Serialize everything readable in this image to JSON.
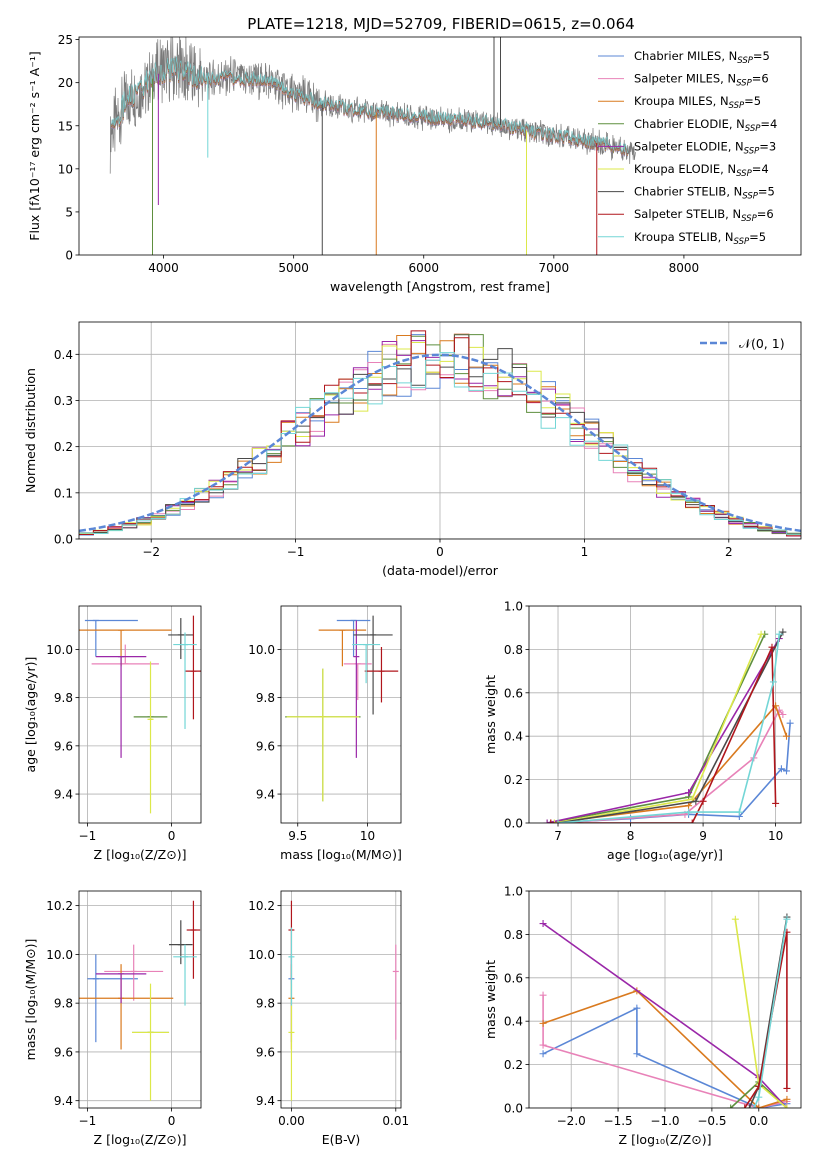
{
  "figure_title": "PLATE=1218, MJD=52709, FIBERID=0615, z=0.064",
  "colors": [
    "#5b87d6",
    "#e882b8",
    "#d97a1f",
    "#5e8f3e",
    "#9a27a8",
    "#dce84a",
    "#4a4a4a",
    "#b0161c",
    "#73d6d6"
  ],
  "chart_data": [
    {
      "id": "spectrum",
      "type": "line",
      "xlabel": "wavelength [Angstrom, rest frame]",
      "ylabel": "Flux [fλ10⁻¹⁷ erg cm⁻² s⁻¹ A⁻¹]",
      "xlim": [
        3350,
        8900
      ],
      "ylim": [
        0,
        25.3
      ],
      "xticks": [
        4000,
        5000,
        6000,
        7000,
        8000
      ],
      "yticks": [
        0,
        5,
        10,
        15,
        20,
        25
      ],
      "grid": false,
      "legend": "top-right",
      "series": [
        {
          "name": "Chabrier MILES, N_SSP=5"
        },
        {
          "name": "Salpeter MILES, N_SSP=6"
        },
        {
          "name": "Kroupa MILES, N_SSP=5"
        },
        {
          "name": "Chabrier ELODIE, N_SSP=4"
        },
        {
          "name": "Salpeter ELODIE, N_SSP=3"
        },
        {
          "name": "Kroupa ELODIE, N_SSP=4"
        },
        {
          "name": "Chabrier STELIB, N_SSP=5"
        },
        {
          "name": "Salpeter STELIB, N_SSP=6"
        },
        {
          "name": "Kroupa STELIB, N_SSP=5"
        }
      ],
      "continuum": {
        "x": [
          3600,
          3700,
          3850,
          3950,
          4100,
          4300,
          4500,
          4800,
          5000,
          5300,
          5600,
          6000,
          6500,
          6800,
          7100,
          7400,
          7600
        ],
        "y": [
          14,
          17.5,
          19.5,
          21,
          21.5,
          20.5,
          20.5,
          20.3,
          18.6,
          17.2,
          16.6,
          16,
          15.4,
          14.4,
          13.6,
          12.8,
          12
        ]
      },
      "data_x_range": [
        3590,
        7630
      ],
      "model_x_range": [
        3600,
        7570
      ],
      "spikes": [
        {
          "x": 3915,
          "y": 0,
          "series": 3
        },
        {
          "x": 3960,
          "y": 5.8,
          "series": 4
        },
        {
          "x": 4340,
          "y": 11.3,
          "series": 8
        },
        {
          "x": 5220,
          "y": 0,
          "series": 6
        },
        {
          "x": 5635,
          "y": 0,
          "series": 2
        },
        {
          "x": 6790,
          "y": 0,
          "series": 5
        },
        {
          "x": 7330,
          "y": 0,
          "series": 7
        },
        {
          "x": 6540,
          "y": 25.3,
          "series": 6
        },
        {
          "x": 6590,
          "y": 25.3,
          "series": 6
        }
      ]
    },
    {
      "id": "residuals",
      "type": "line",
      "xlabel": "(data-model)/error",
      "ylabel": "Normed distribution",
      "xlim": [
        -2.5,
        2.5
      ],
      "ylim": [
        0,
        0.47
      ],
      "xticks": [
        -2,
        -1,
        0,
        1,
        2
      ],
      "yticks": [
        0.0,
        0.1,
        0.2,
        0.3,
        0.4
      ],
      "grid": true,
      "legend": "top-right",
      "legend_label": "𝒩(0, 1)",
      "bin_width": 0.1,
      "series_note": "step histograms, one per model fit, approximately normal"
    },
    {
      "id": "age_vs_Z",
      "type": "scatter",
      "xlabel": "Z [log₁₀(Z/Z⊙)]",
      "ylabel": "age  [log₁₀(age/yr)]",
      "xlim": [
        -1.1,
        0.35
      ],
      "ylim": [
        9.28,
        10.18
      ],
      "xticks": [
        -1,
        0
      ],
      "yticks": [
        9.4,
        9.6,
        9.8,
        10.0
      ],
      "grid": true,
      "points": [
        {
          "x": -0.9,
          "xerr": 0.13,
          "xerr2": 0.5,
          "y": 10.12,
          "yerr_lo": 0.15,
          "yerr_hi": 0.0,
          "series": 0
        },
        {
          "x": -0.55,
          "xerr": 0.4,
          "y": 9.94,
          "yerr_lo": 0.0,
          "yerr_hi": 0.08,
          "series": 1
        },
        {
          "x": -0.6,
          "xerr": 0.6,
          "y": 10.08,
          "yerr_lo": 0.15,
          "yerr_hi": 0.0,
          "series": 2
        },
        {
          "x": -0.25,
          "xerr": 0.2,
          "y": 9.72,
          "yerr_lo": 0.0,
          "yerr_hi": 0.0,
          "series": 3
        },
        {
          "x": -0.6,
          "xerr": 0.3,
          "y": 9.97,
          "yerr_lo": 0.42,
          "yerr_hi": 0.0,
          "series": 4
        },
        {
          "x": -0.25,
          "xerr": 0.02,
          "y": 9.71,
          "yerr_lo": 0.39,
          "yerr_hi": 0.24,
          "series": 5
        },
        {
          "x": 0.11,
          "xerr": 0.15,
          "y": 10.06,
          "yerr_lo": 0.1,
          "yerr_hi": 0.07,
          "series": 6
        },
        {
          "x": 0.26,
          "xerr": 0.1,
          "y": 9.91,
          "yerr_lo": 0.2,
          "yerr_hi": 0.23,
          "series": 7
        },
        {
          "x": 0.16,
          "xerr": 0.14,
          "y": 10.02,
          "yerr_lo": 0.35,
          "yerr_hi": 0.05,
          "series": 8
        }
      ]
    },
    {
      "id": "age_vs_mass",
      "type": "scatter",
      "xlabel": "mass [log₁₀(M/M⊙)]",
      "ylabel": "",
      "xlim": [
        9.38,
        10.24
      ],
      "ylim": [
        9.28,
        10.18
      ],
      "xticks": [
        9.5,
        10.0
      ],
      "yticks": [
        9.4,
        9.6,
        9.8,
        10.0
      ],
      "grid": true,
      "points": [
        {
          "x": 9.9,
          "xerr": 0.12,
          "y": 10.12,
          "yerr_lo": 0.15,
          "yerr_hi": 0.0,
          "series": 0
        },
        {
          "x": 9.93,
          "xerr": 0.1,
          "y": 9.94,
          "yerr_lo": 0.15,
          "yerr_hi": 0.0,
          "series": 1
        },
        {
          "x": 9.82,
          "xerr": 0.17,
          "y": 10.08,
          "yerr_lo": 0.15,
          "yerr_hi": 0.0,
          "series": 2
        },
        {
          "x": 9.68,
          "xerr": 0.27,
          "y": 9.72,
          "yerr_lo": 0.35,
          "yerr_hi": 0.2,
          "series": 3
        },
        {
          "x": 9.92,
          "xerr": 0.0,
          "y": 9.97,
          "yerr_lo": 0.42,
          "yerr_hi": 0.15,
          "series": 4
        },
        {
          "x": 9.68,
          "xerr": 0.26,
          "y": 9.72,
          "yerr_lo": 0.35,
          "yerr_hi": 0.2,
          "series": 5
        },
        {
          "x": 10.04,
          "xerr": 0.14,
          "y": 10.06,
          "yerr_lo": 0.33,
          "yerr_hi": 0.08,
          "series": 6
        },
        {
          "x": 10.1,
          "xerr": 0.12,
          "y": 9.91,
          "yerr_lo": 0.13,
          "yerr_hi": 0.1,
          "series": 7
        },
        {
          "x": 9.99,
          "xerr": 0.1,
          "y": 10.02,
          "yerr_lo": 0.16,
          "yerr_hi": 0.0,
          "series": 8
        }
      ]
    },
    {
      "id": "massweight_vs_age",
      "type": "line",
      "xlabel": "age  [log₁₀(age/yr)]",
      "ylabel": "mass weight",
      "xlim": [
        6.6,
        10.35
      ],
      "ylim": [
        0,
        1.0
      ],
      "xticks": [
        7,
        8,
        9,
        10
      ],
      "yticks": [
        0.0,
        0.2,
        0.4,
        0.6,
        0.8,
        1.0
      ],
      "grid": true,
      "series": [
        {
          "x": [
            7.0,
            8.0,
            9.15,
            9.5,
            10.1,
            10.12,
            10.2
          ],
          "y": [
            0.0,
            0.02,
            0.04,
            0.03,
            0.25,
            0.25,
            0.46
          ],
          "order": [
            0,
            1,
            2,
            3,
            5,
            6,
            4,
            4
          ],
          "path": [
            [
              6.9,
              0.0
            ],
            [
              8.0,
              0.02
            ],
            [
              8.8,
              0.04
            ],
            [
              9.5,
              0.03
            ],
            [
              10.08,
              0.25
            ],
            [
              10.15,
              0.24
            ],
            [
              10.2,
              0.46
            ]
          ]
        },
        {
          "path": [
            [
              7.0,
              0.0
            ],
            [
              8.75,
              0.04
            ],
            [
              9.7,
              0.3
            ],
            [
              10.05,
              0.52
            ],
            [
              10.1,
              0.5
            ]
          ]
        },
        {
          "path": [
            [
              6.9,
              0.0
            ],
            [
              8.8,
              0.08
            ],
            [
              10.0,
              0.54
            ],
            [
              10.15,
              0.4
            ]
          ]
        },
        {
          "path": [
            [
              6.85,
              0.0
            ],
            [
              8.8,
              0.12
            ],
            [
              9.85,
              0.87
            ]
          ]
        },
        {
          "path": [
            [
              6.85,
              0.0
            ],
            [
              8.8,
              0.14
            ],
            [
              10.05,
              0.85
            ]
          ]
        },
        {
          "path": [
            [
              6.95,
              0.0
            ],
            [
              8.85,
              0.11
            ],
            [
              9.8,
              0.87
            ]
          ]
        },
        {
          "path": [
            [
              7.0,
              0.0
            ],
            [
              8.9,
              0.1
            ],
            [
              10.1,
              0.88
            ]
          ]
        },
        {
          "path": [
            [
              6.9,
              0.0
            ],
            [
              8.85,
              0.0
            ],
            [
              9.0,
              0.1
            ],
            [
              9.95,
              0.81
            ],
            [
              10.0,
              0.09
            ]
          ]
        },
        {
          "path": [
            [
              7.0,
              0.0
            ],
            [
              8.8,
              0.05
            ],
            [
              9.5,
              0.05
            ],
            [
              9.97,
              0.65
            ],
            [
              10.05,
              0.87
            ]
          ]
        }
      ]
    },
    {
      "id": "mass_vs_Z",
      "type": "scatter",
      "xlabel": "Z [log₁₀(Z/Z⊙)]",
      "ylabel": "mass [log₁₀(M/M⊙)]",
      "xlim": [
        -1.1,
        0.35
      ],
      "ylim": [
        9.37,
        10.26
      ],
      "xticks": [
        -1,
        0
      ],
      "yticks": [
        9.4,
        9.6,
        9.8,
        10.0,
        10.2
      ],
      "grid": true,
      "points": [
        {
          "x": -0.9,
          "xerr": 0.1,
          "xerr2": 0.5,
          "y": 9.9,
          "yerr_lo": 0.26,
          "yerr_hi": 0.1,
          "series": 0
        },
        {
          "x": -0.45,
          "xerr": 0.35,
          "y": 9.93,
          "yerr_lo": 0.12,
          "yerr_hi": 0.11,
          "series": 1
        },
        {
          "x": -0.6,
          "xerr": 0.62,
          "y": 9.82,
          "yerr_lo": 0.21,
          "yerr_hi": 0.14,
          "series": 2
        },
        {
          "x": -0.25,
          "xerr": 0.22,
          "y": 9.68,
          "yerr_lo": 0.0,
          "yerr_hi": 0.0,
          "series": 3
        },
        {
          "x": -0.6,
          "xerr": 0.3,
          "y": 9.92,
          "yerr_lo": 0.12,
          "yerr_hi": 0.0,
          "series": 4
        },
        {
          "x": -0.25,
          "xerr": 0.22,
          "y": 9.68,
          "yerr_lo": 0.28,
          "yerr_hi": 0.2,
          "series": 5
        },
        {
          "x": 0.11,
          "xerr": 0.14,
          "y": 10.04,
          "yerr_lo": 0.08,
          "yerr_hi": 0.1,
          "series": 6
        },
        {
          "x": 0.26,
          "xerr": 0.08,
          "y": 10.1,
          "yerr_lo": 0.2,
          "yerr_hi": 0.12,
          "series": 7
        },
        {
          "x": 0.16,
          "xerr": 0.14,
          "y": 9.99,
          "yerr_lo": 0.2,
          "yerr_hi": 0.05,
          "series": 8
        }
      ]
    },
    {
      "id": "mass_vs_ebv",
      "type": "scatter",
      "xlabel": "E(B-V)",
      "ylabel": "",
      "xlim": [
        -0.001,
        0.0105
      ],
      "ylim": [
        9.37,
        10.26
      ],
      "xticks": [
        0.0,
        0.01
      ],
      "xticklabels": [
        "0.00",
        "0.01"
      ],
      "yticks": [
        9.4,
        9.6,
        9.8,
        10.0,
        10.2
      ],
      "grid": true,
      "points": [
        {
          "x": 0.0,
          "y": 9.9,
          "yerr_lo": 0.26,
          "yerr_hi": 0.1,
          "series": 0
        },
        {
          "x": 0.01,
          "y": 9.93,
          "yerr_lo": 0.28,
          "yerr_hi": 0.11,
          "series": 1
        },
        {
          "x": 0.0,
          "y": 9.82,
          "yerr_lo": 0.21,
          "yerr_hi": 0.14,
          "series": 2
        },
        {
          "x": 0.0,
          "y": 9.68,
          "yerr_lo": 0.28,
          "yerr_hi": 0.2,
          "series": 5
        },
        {
          "x": 0.0,
          "y": 10.1,
          "yerr_lo": 0.2,
          "yerr_hi": 0.12,
          "series": 7
        },
        {
          "x": 0.0,
          "y": 9.99,
          "yerr_lo": 0.2,
          "yerr_hi": 0.12,
          "series": 8
        }
      ]
    },
    {
      "id": "massweight_vs_Z",
      "type": "line",
      "xlabel": "Z [log₁₀(Z/Z⊙)]",
      "ylabel": "mass weight",
      "xlim": [
        -2.45,
        0.45
      ],
      "ylim": [
        0,
        1.0
      ],
      "xticks": [
        -2.0,
        -1.5,
        -1.0,
        -0.5,
        0.0
      ],
      "xticklabels": [
        "−2.0",
        "−1.5",
        "−1.0",
        "−0.5",
        "0.0"
      ],
      "yticks": [
        0.0,
        0.2,
        0.4,
        0.6,
        0.8,
        1.0
      ],
      "grid": true,
      "series": [
        {
          "path": [
            [
              -2.3,
              0.25
            ],
            [
              -1.3,
              0.46
            ],
            [
              -1.3,
              0.25
            ],
            [
              0.0,
              0.0
            ],
            [
              0.3,
              0.02
            ]
          ]
        },
        {
          "path": [
            [
              -2.3,
              0.52
            ],
            [
              -2.3,
              0.29
            ],
            [
              0.0,
              0.0
            ],
            [
              0.3,
              0.03
            ]
          ]
        },
        {
          "path": [
            [
              -2.3,
              0.39
            ],
            [
              -1.3,
              0.54
            ],
            [
              0.0,
              0.0
            ],
            [
              0.3,
              0.04
            ]
          ]
        },
        {
          "path": [
            [
              -0.3,
              0.0
            ],
            [
              0.0,
              0.12
            ],
            [
              0.3,
              0.0
            ]
          ]
        },
        {
          "path": [
            [
              -2.3,
              0.85
            ],
            [
              0.0,
              0.14
            ],
            [
              0.3,
              0.0
            ]
          ]
        },
        {
          "path": [
            [
              -0.25,
              0.87
            ],
            [
              0.0,
              0.11
            ],
            [
              0.3,
              0.0
            ]
          ]
        },
        {
          "path": [
            [
              -0.1,
              0.0
            ],
            [
              0.0,
              0.1
            ],
            [
              0.3,
              0.88
            ]
          ]
        },
        {
          "path": [
            [
              -0.15,
              0.0
            ],
            [
              0.0,
              0.1
            ],
            [
              0.3,
              0.81
            ],
            [
              0.3,
              0.09
            ]
          ]
        },
        {
          "path": [
            [
              -0.05,
              0.0
            ],
            [
              0.0,
              0.05
            ],
            [
              0.3,
              0.87
            ]
          ]
        }
      ]
    }
  ]
}
